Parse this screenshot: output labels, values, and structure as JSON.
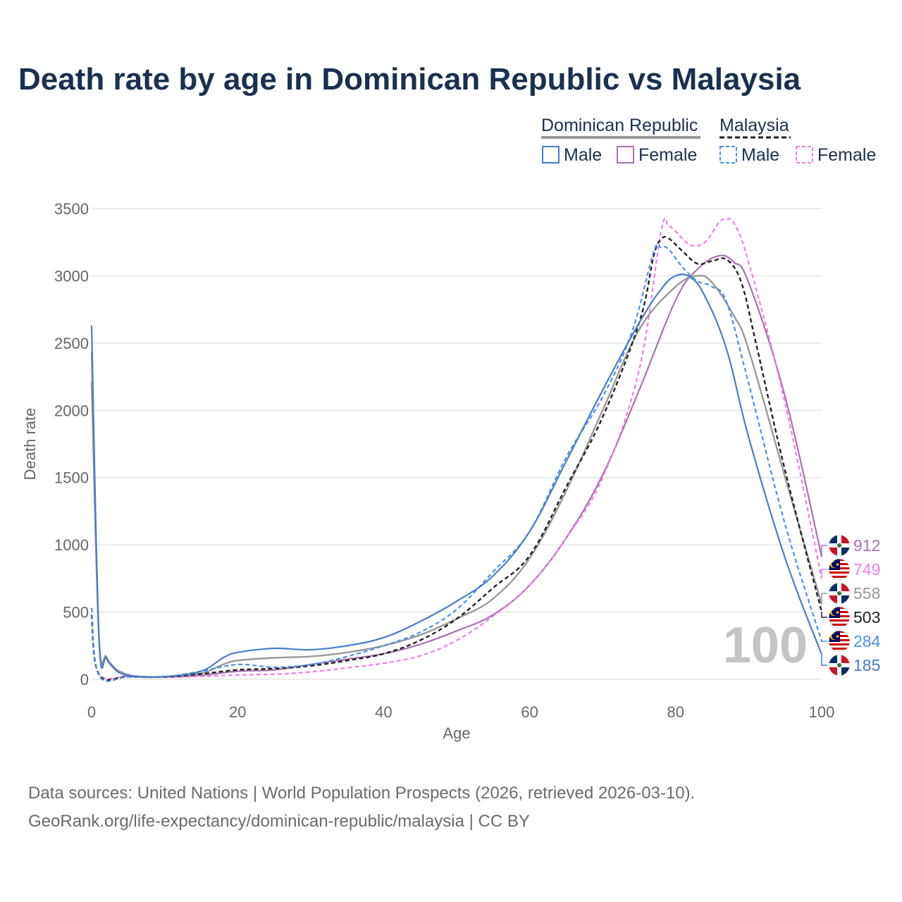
{
  "title": "Death rate by age in Dominican Republic vs Malaysia",
  "source_line1": "Data sources: United Nations | World Population Prospects (2026, retrieved 2026-03-10).",
  "source_line2": "GeoRank.org/life-expectancy/dominican-republic/malaysia | CC BY",
  "legend": {
    "group1": "Dominican Republic",
    "group2": "Malaysia",
    "male": "Male",
    "female": "Female"
  },
  "age_display": "100",
  "colors": {
    "dr_male": "#4a7cc9",
    "dr_female": "#a872b0",
    "dr_total": "#999999",
    "my_male": "#4a90e8",
    "my_female": "#f07ee8",
    "my_total": "#222222",
    "title": "#1a3050",
    "grid": "#e6e6e6"
  },
  "chart_data": {
    "type": "line",
    "title": "Death rate by age in Dominican Republic vs Malaysia",
    "xlabel": "Age",
    "ylabel": "Death rate",
    "xlim": [
      0,
      100
    ],
    "ylim": [
      0,
      3500
    ],
    "xticks": [
      0,
      20,
      40,
      60,
      80,
      100
    ],
    "yticks": [
      0,
      500,
      1000,
      1500,
      2000,
      2500,
      3000,
      3500
    ],
    "series": [
      {
        "name": "Dominican Republic Female",
        "key": "dr_female",
        "dash": false,
        "country": "dr",
        "end_label": "912",
        "points": [
          [
            0,
            2210
          ],
          [
            1,
            320
          ],
          [
            2,
            170
          ],
          [
            3,
            95
          ],
          [
            4,
            55
          ],
          [
            6,
            25
          ],
          [
            10,
            18
          ],
          [
            15,
            30
          ],
          [
            20,
            60
          ],
          [
            25,
            70
          ],
          [
            30,
            110
          ],
          [
            35,
            150
          ],
          [
            40,
            190
          ],
          [
            45,
            260
          ],
          [
            50,
            360
          ],
          [
            55,
            480
          ],
          [
            60,
            700
          ],
          [
            65,
            1050
          ],
          [
            70,
            1520
          ],
          [
            75,
            2150
          ],
          [
            80,
            2820
          ],
          [
            83,
            3050
          ],
          [
            86,
            3150
          ],
          [
            88,
            3100
          ],
          [
            90,
            2950
          ],
          [
            95,
            2100
          ],
          [
            100,
            912
          ]
        ]
      },
      {
        "name": "Malaysia Female",
        "key": "my_female",
        "dash": true,
        "country": "my",
        "end_label": "749",
        "points": [
          [
            0,
            420
          ],
          [
            1,
            40
          ],
          [
            5,
            22
          ],
          [
            10,
            15
          ],
          [
            15,
            22
          ],
          [
            20,
            32
          ],
          [
            25,
            38
          ],
          [
            30,
            55
          ],
          [
            35,
            85
          ],
          [
            40,
            120
          ],
          [
            45,
            175
          ],
          [
            50,
            290
          ],
          [
            55,
            470
          ],
          [
            60,
            700
          ],
          [
            65,
            1050
          ],
          [
            70,
            1500
          ],
          [
            75,
            2300
          ],
          [
            78,
            3330
          ],
          [
            79,
            3370
          ],
          [
            80,
            3330
          ],
          [
            82,
            3230
          ],
          [
            84,
            3250
          ],
          [
            86,
            3400
          ],
          [
            87,
            3420
          ],
          [
            88,
            3390
          ],
          [
            90,
            3100
          ],
          [
            95,
            2050
          ],
          [
            100,
            749
          ]
        ]
      },
      {
        "name": "Dominican Republic Total",
        "key": "dr_total",
        "dash": false,
        "country": "dr",
        "end_label": "558",
        "points": [
          [
            0,
            2430
          ],
          [
            1,
            320
          ],
          [
            2,
            165
          ],
          [
            3,
            90
          ],
          [
            4,
            50
          ],
          [
            6,
            22
          ],
          [
            10,
            20
          ],
          [
            15,
            45
          ],
          [
            18,
            110
          ],
          [
            20,
            140
          ],
          [
            25,
            160
          ],
          [
            30,
            170
          ],
          [
            35,
            200
          ],
          [
            40,
            250
          ],
          [
            45,
            330
          ],
          [
            50,
            450
          ],
          [
            55,
            600
          ],
          [
            60,
            900
          ],
          [
            65,
            1400
          ],
          [
            70,
            2000
          ],
          [
            75,
            2600
          ],
          [
            80,
            2920
          ],
          [
            83,
            3000
          ],
          [
            85,
            2950
          ],
          [
            88,
            2700
          ],
          [
            90,
            2450
          ],
          [
            95,
            1500
          ],
          [
            100,
            558
          ]
        ]
      },
      {
        "name": "Malaysia Total",
        "key": "my_total",
        "dash": true,
        "country": "my",
        "end_label": "503",
        "points": [
          [
            0,
            480
          ],
          [
            1,
            35
          ],
          [
            5,
            20
          ],
          [
            10,
            18
          ],
          [
            15,
            40
          ],
          [
            20,
            70
          ],
          [
            25,
            80
          ],
          [
            30,
            100
          ],
          [
            35,
            140
          ],
          [
            40,
            190
          ],
          [
            45,
            290
          ],
          [
            50,
            450
          ],
          [
            55,
            680
          ],
          [
            60,
            920
          ],
          [
            65,
            1430
          ],
          [
            70,
            1950
          ],
          [
            75,
            2650
          ],
          [
            77,
            3150
          ],
          [
            78,
            3270
          ],
          [
            79,
            3280
          ],
          [
            81,
            3180
          ],
          [
            83,
            3090
          ],
          [
            85,
            3110
          ],
          [
            87,
            3120
          ],
          [
            89,
            2950
          ],
          [
            91,
            2500
          ],
          [
            95,
            1550
          ],
          [
            100,
            503
          ]
        ]
      },
      {
        "name": "Malaysia Male",
        "key": "my_male",
        "dash": true,
        "country": "my",
        "end_label": "284",
        "points": [
          [
            0,
            530
          ],
          [
            1,
            30
          ],
          [
            5,
            18
          ],
          [
            10,
            20
          ],
          [
            15,
            60
          ],
          [
            20,
            110
          ],
          [
            25,
            90
          ],
          [
            30,
            110
          ],
          [
            35,
            170
          ],
          [
            40,
            250
          ],
          [
            45,
            350
          ],
          [
            50,
            520
          ],
          [
            55,
            800
          ],
          [
            60,
            1100
          ],
          [
            65,
            1650
          ],
          [
            70,
            2100
          ],
          [
            74,
            2580
          ],
          [
            77,
            3180
          ],
          [
            78,
            3210
          ],
          [
            79,
            3200
          ],
          [
            81,
            3060
          ],
          [
            83,
            2960
          ],
          [
            85,
            2920
          ],
          [
            87,
            2800
          ],
          [
            90,
            2200
          ],
          [
            95,
            1150
          ],
          [
            100,
            284
          ]
        ]
      },
      {
        "name": "Dominican Republic Male",
        "key": "dr_male",
        "dash": false,
        "country": "dr",
        "end_label": "185",
        "points": [
          [
            0,
            2630
          ],
          [
            1,
            320
          ],
          [
            2,
            160
          ],
          [
            3,
            85
          ],
          [
            4,
            45
          ],
          [
            6,
            20
          ],
          [
            10,
            20
          ],
          [
            15,
            60
          ],
          [
            18,
            160
          ],
          [
            20,
            200
          ],
          [
            25,
            230
          ],
          [
            30,
            220
          ],
          [
            35,
            250
          ],
          [
            40,
            310
          ],
          [
            45,
            430
          ],
          [
            50,
            580
          ],
          [
            55,
            770
          ],
          [
            60,
            1100
          ],
          [
            65,
            1620
          ],
          [
            70,
            2150
          ],
          [
            75,
            2650
          ],
          [
            78,
            2900
          ],
          [
            80,
            3000
          ],
          [
            82,
            2990
          ],
          [
            84,
            2850
          ],
          [
            87,
            2450
          ],
          [
            90,
            1800
          ],
          [
            95,
            900
          ],
          [
            100,
            185
          ]
        ]
      }
    ]
  }
}
